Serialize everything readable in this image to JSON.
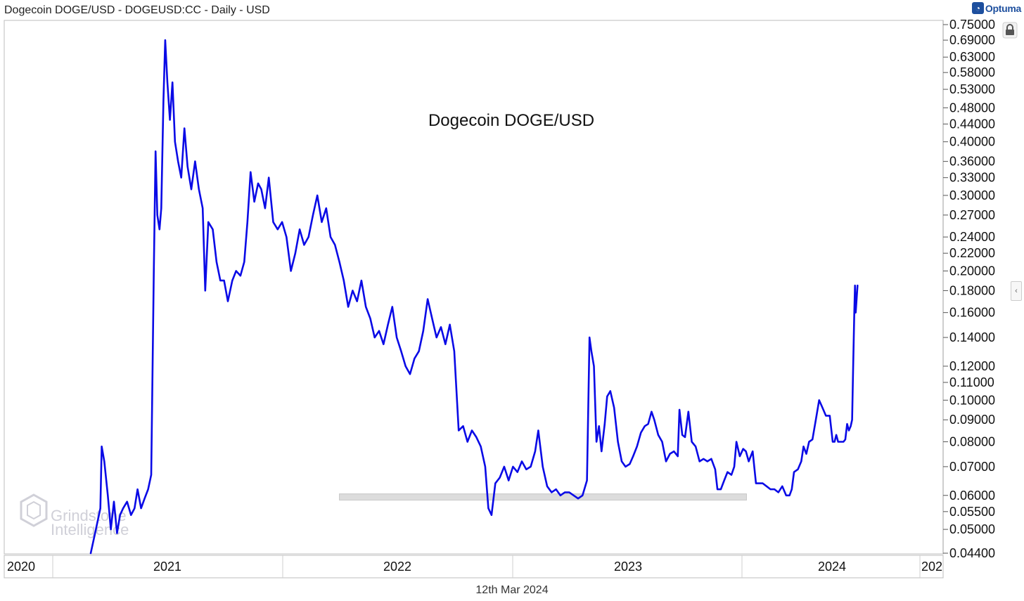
{
  "header": {
    "title": "Dogecoin DOGE/USD - DOGEUSD:CC - Daily - USD",
    "brand": "Optuma",
    "brand_icon": "optuma-logo-icon"
  },
  "footer": {
    "date": "12th Mar 2024"
  },
  "watermark": {
    "line1": "Grindstone",
    "line2": "Intelligence"
  },
  "icons": {
    "lock": "lock-icon",
    "collapse": "chevron-left-icon"
  },
  "colors": {
    "line": "#0a0ae6",
    "support_band": "#dcdcdc",
    "grid": "#cccccc"
  },
  "chart_data": {
    "type": "line",
    "title": "Dogecoin DOGE/USD",
    "y_scale": "log",
    "ylim": [
      0.044,
      0.75
    ],
    "y_ticks": [
      "0.75000",
      "0.69000",
      "0.63000",
      "0.58000",
      "0.53000",
      "0.48000",
      "0.44000",
      "0.40000",
      "0.36000",
      "0.33000",
      "0.30000",
      "0.27000",
      "0.24000",
      "0.22000",
      "0.20000",
      "0.18000",
      "0.16000",
      "0.14000",
      "0.12000",
      "0.11000",
      "0.10000",
      "0.09000",
      "0.08000",
      "0.07000",
      "0.06000",
      "0.05500",
      "0.05000",
      "0.04400"
    ],
    "x_ticks": [
      "2020",
      "2021",
      "2022",
      "2023",
      "2024",
      "202"
    ],
    "support_band": {
      "from": "2021-10",
      "to": "2023-08",
      "low": 0.0585,
      "high": 0.0605
    },
    "series": [
      {
        "values": [
          [
            "2020-07-10",
            0.044
          ],
          [
            "2020-07-20",
            0.049
          ],
          [
            "2020-08-01",
            0.056
          ],
          [
            "2020-08-04",
            0.078
          ],
          [
            "2020-08-10",
            0.072
          ],
          [
            "2020-08-18",
            0.06
          ],
          [
            "2020-08-25",
            0.05
          ],
          [
            "2020-09-01",
            0.058
          ],
          [
            "2020-09-08",
            0.049
          ],
          [
            "2020-09-15",
            0.054
          ],
          [
            "2020-09-22",
            0.056
          ],
          [
            "2020-10-01",
            0.058
          ],
          [
            "2020-10-10",
            0.054
          ],
          [
            "2020-10-18",
            0.056
          ],
          [
            "2020-10-25",
            0.062
          ],
          [
            "2020-11-02",
            0.056
          ],
          [
            "2020-11-10",
            0.059
          ],
          [
            "2020-11-18",
            0.062
          ],
          [
            "2020-11-25",
            0.067
          ],
          [
            "2020-12-01",
            0.2
          ],
          [
            "2020-12-05",
            0.38
          ],
          [
            "2020-12-09",
            0.27
          ],
          [
            "2020-12-14",
            0.25
          ],
          [
            "2020-12-18",
            0.28
          ],
          [
            "2020-12-23",
            0.5
          ],
          [
            "2020-12-27",
            0.69
          ],
          [
            "2021-01-01",
            0.55
          ],
          [
            "2021-01-05",
            0.45
          ],
          [
            "2021-01-09",
            0.55
          ],
          [
            "2021-01-13",
            0.4
          ],
          [
            "2021-01-18",
            0.36
          ],
          [
            "2021-01-23",
            0.33
          ],
          [
            "2021-01-28",
            0.43
          ],
          [
            "2021-02-02",
            0.35
          ],
          [
            "2021-02-08",
            0.31
          ],
          [
            "2021-02-14",
            0.36
          ],
          [
            "2021-02-20",
            0.31
          ],
          [
            "2021-02-26",
            0.28
          ],
          [
            "2021-03-02",
            0.18
          ],
          [
            "2021-03-07",
            0.26
          ],
          [
            "2021-03-14",
            0.25
          ],
          [
            "2021-03-20",
            0.21
          ],
          [
            "2021-03-26",
            0.19
          ],
          [
            "2021-04-01",
            0.19
          ],
          [
            "2021-04-07",
            0.17
          ],
          [
            "2021-04-14",
            0.19
          ],
          [
            "2021-04-20",
            0.2
          ],
          [
            "2021-04-27",
            0.195
          ],
          [
            "2021-05-03",
            0.21
          ],
          [
            "2021-05-08",
            0.26
          ],
          [
            "2021-05-13",
            0.34
          ],
          [
            "2021-05-19",
            0.29
          ],
          [
            "2021-05-25",
            0.32
          ],
          [
            "2021-05-30",
            0.31
          ],
          [
            "2021-06-05",
            0.28
          ],
          [
            "2021-06-11",
            0.33
          ],
          [
            "2021-06-18",
            0.26
          ],
          [
            "2021-06-25",
            0.25
          ],
          [
            "2021-07-02",
            0.26
          ],
          [
            "2021-07-09",
            0.24
          ],
          [
            "2021-07-16",
            0.2
          ],
          [
            "2021-07-23",
            0.22
          ],
          [
            "2021-07-30",
            0.25
          ],
          [
            "2021-08-06",
            0.23
          ],
          [
            "2021-08-13",
            0.24
          ],
          [
            "2021-08-20",
            0.27
          ],
          [
            "2021-08-27",
            0.3
          ],
          [
            "2021-09-03",
            0.26
          ],
          [
            "2021-09-10",
            0.28
          ],
          [
            "2021-09-17",
            0.24
          ],
          [
            "2021-09-24",
            0.23
          ],
          [
            "2021-10-01",
            0.21
          ],
          [
            "2021-10-08",
            0.19
          ],
          [
            "2021-10-15",
            0.165
          ],
          [
            "2021-10-22",
            0.18
          ],
          [
            "2021-10-29",
            0.17
          ],
          [
            "2021-11-05",
            0.19
          ],
          [
            "2021-11-12",
            0.165
          ],
          [
            "2021-11-19",
            0.155
          ],
          [
            "2021-11-26",
            0.14
          ],
          [
            "2021-12-03",
            0.145
          ],
          [
            "2021-12-10",
            0.135
          ],
          [
            "2021-12-17",
            0.15
          ],
          [
            "2021-12-24",
            0.165
          ],
          [
            "2021-12-31",
            0.14
          ],
          [
            "2022-01-07",
            0.13
          ],
          [
            "2022-01-14",
            0.12
          ],
          [
            "2022-01-21",
            0.115
          ],
          [
            "2022-01-28",
            0.125
          ],
          [
            "2022-02-04",
            0.13
          ],
          [
            "2022-02-11",
            0.145
          ],
          [
            "2022-02-18",
            0.172
          ],
          [
            "2022-02-25",
            0.155
          ],
          [
            "2022-03-04",
            0.14
          ],
          [
            "2022-03-11",
            0.148
          ],
          [
            "2022-03-18",
            0.135
          ],
          [
            "2022-03-25",
            0.15
          ],
          [
            "2022-04-01",
            0.13
          ],
          [
            "2022-04-08",
            0.085
          ],
          [
            "2022-04-15",
            0.087
          ],
          [
            "2022-04-22",
            0.08
          ],
          [
            "2022-04-29",
            0.085
          ],
          [
            "2022-05-06",
            0.082
          ],
          [
            "2022-05-13",
            0.078
          ],
          [
            "2022-05-20",
            0.07
          ],
          [
            "2022-05-25",
            0.056
          ],
          [
            "2022-05-30",
            0.054
          ],
          [
            "2022-06-05",
            0.064
          ],
          [
            "2022-06-12",
            0.066
          ],
          [
            "2022-06-19",
            0.07
          ],
          [
            "2022-06-26",
            0.065
          ],
          [
            "2022-07-03",
            0.07
          ],
          [
            "2022-07-10",
            0.068
          ],
          [
            "2022-07-17",
            0.072
          ],
          [
            "2022-07-24",
            0.069
          ],
          [
            "2022-07-31",
            0.07
          ],
          [
            "2022-08-07",
            0.076
          ],
          [
            "2022-08-12",
            0.085
          ],
          [
            "2022-08-19",
            0.07
          ],
          [
            "2022-08-26",
            0.063
          ],
          [
            "2022-09-02",
            0.061
          ],
          [
            "2022-09-09",
            0.062
          ],
          [
            "2022-09-16",
            0.06
          ],
          [
            "2022-09-23",
            0.061
          ],
          [
            "2022-09-30",
            0.061
          ],
          [
            "2022-10-07",
            0.06
          ],
          [
            "2022-10-14",
            0.059
          ],
          [
            "2022-10-21",
            0.06
          ],
          [
            "2022-10-28",
            0.065
          ],
          [
            "2022-11-01",
            0.14
          ],
          [
            "2022-11-04",
            0.13
          ],
          [
            "2022-11-08",
            0.12
          ],
          [
            "2022-11-12",
            0.08
          ],
          [
            "2022-11-16",
            0.087
          ],
          [
            "2022-11-20",
            0.076
          ],
          [
            "2022-11-25",
            0.088
          ],
          [
            "2022-11-29",
            0.102
          ],
          [
            "2022-12-04",
            0.105
          ],
          [
            "2022-12-10",
            0.096
          ],
          [
            "2022-12-16",
            0.08
          ],
          [
            "2022-12-22",
            0.072
          ],
          [
            "2022-12-28",
            0.07
          ],
          [
            "2023-01-04",
            0.071
          ],
          [
            "2023-01-10",
            0.074
          ],
          [
            "2023-01-17",
            0.078
          ],
          [
            "2023-01-24",
            0.084
          ],
          [
            "2023-01-31",
            0.087
          ],
          [
            "2023-02-06",
            0.088
          ],
          [
            "2023-02-12",
            0.094
          ],
          [
            "2023-02-17",
            0.09
          ],
          [
            "2023-02-24",
            0.083
          ],
          [
            "2023-03-03",
            0.08
          ],
          [
            "2023-03-10",
            0.072
          ],
          [
            "2023-03-17",
            0.075
          ],
          [
            "2023-03-24",
            0.076
          ],
          [
            "2023-03-31",
            0.074
          ],
          [
            "2023-04-03",
            0.095
          ],
          [
            "2023-04-08",
            0.083
          ],
          [
            "2023-04-13",
            0.082
          ],
          [
            "2023-04-19",
            0.094
          ],
          [
            "2023-04-25",
            0.08
          ],
          [
            "2023-05-02",
            0.078
          ],
          [
            "2023-05-09",
            0.072
          ],
          [
            "2023-05-16",
            0.073
          ],
          [
            "2023-05-23",
            0.072
          ],
          [
            "2023-05-30",
            0.073
          ],
          [
            "2023-06-06",
            0.069
          ],
          [
            "2023-06-10",
            0.062
          ],
          [
            "2023-06-16",
            0.062
          ],
          [
            "2023-06-22",
            0.065
          ],
          [
            "2023-06-28",
            0.068
          ],
          [
            "2023-07-05",
            0.067
          ],
          [
            "2023-07-10",
            0.07
          ],
          [
            "2023-07-14",
            0.08
          ],
          [
            "2023-07-20",
            0.074
          ],
          [
            "2023-07-26",
            0.077
          ],
          [
            "2023-07-31",
            0.076
          ],
          [
            "2023-08-05",
            0.072
          ],
          [
            "2023-08-12",
            0.076
          ],
          [
            "2023-08-18",
            0.064
          ],
          [
            "2023-08-24",
            0.064
          ],
          [
            "2023-08-30",
            0.064
          ],
          [
            "2023-09-06",
            0.063
          ],
          [
            "2023-09-13",
            0.062
          ],
          [
            "2023-09-20",
            0.062
          ],
          [
            "2023-09-27",
            0.061
          ],
          [
            "2023-10-04",
            0.063
          ],
          [
            "2023-10-11",
            0.06
          ],
          [
            "2023-10-17",
            0.06
          ],
          [
            "2023-10-21",
            0.062
          ],
          [
            "2023-10-25",
            0.068
          ],
          [
            "2023-11-01",
            0.069
          ],
          [
            "2023-11-07",
            0.072
          ],
          [
            "2023-11-11",
            0.078
          ],
          [
            "2023-11-16",
            0.075
          ],
          [
            "2023-11-21",
            0.08
          ],
          [
            "2023-11-27",
            0.081
          ],
          [
            "2023-12-03",
            0.09
          ],
          [
            "2023-12-09",
            0.1
          ],
          [
            "2023-12-15",
            0.096
          ],
          [
            "2023-12-21",
            0.092
          ],
          [
            "2023-12-28",
            0.092
          ],
          [
            "2024-01-03",
            0.08
          ],
          [
            "2024-01-08",
            0.08
          ],
          [
            "2024-01-13",
            0.083
          ],
          [
            "2024-01-18",
            0.08
          ],
          [
            "2024-01-23",
            0.08
          ],
          [
            "2024-01-28",
            0.08
          ],
          [
            "2024-02-02",
            0.08
          ],
          [
            "2024-02-07",
            0.081
          ],
          [
            "2024-02-12",
            0.088
          ],
          [
            "2024-02-17",
            0.085
          ],
          [
            "2024-02-22",
            0.087
          ],
          [
            "2024-02-26",
            0.09
          ],
          [
            "2024-02-29",
            0.12
          ],
          [
            "2024-03-03",
            0.16
          ],
          [
            "2024-03-05",
            0.185
          ],
          [
            "2024-03-07",
            0.16
          ],
          [
            "2024-03-10",
            0.175
          ],
          [
            "2024-03-12",
            0.185
          ]
        ]
      }
    ]
  }
}
